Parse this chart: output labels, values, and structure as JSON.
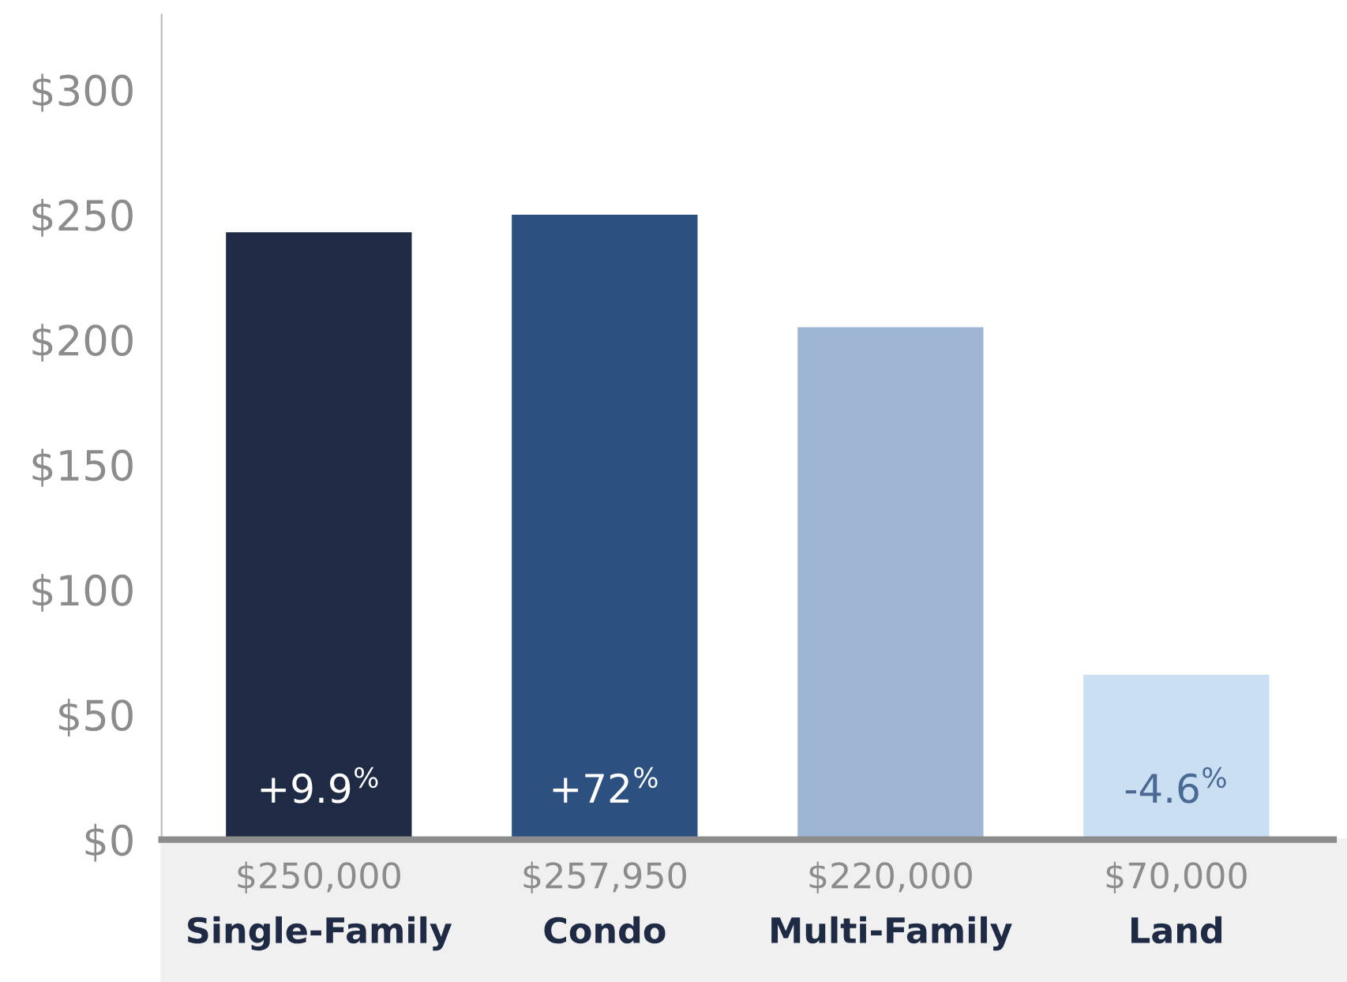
{
  "chart_data": {
    "type": "bar",
    "categories": [
      "$250,000\nSingle-Family",
      "$257,950\nCondo",
      "$220,000\nMulti-Family",
      "$70,000\nLand"
    ],
    "values": [
      243,
      250,
      205,
      66
    ],
    "colors": [
      "#1f2b45",
      "#2c5080",
      "#9fb5d4",
      "#cadff2"
    ],
    "ylim": [
      0,
      330
    ],
    "yticks": [
      {
        "value": 0,
        "label": "$0"
      },
      {
        "value": 50,
        "label": "$50"
      },
      {
        "value": 100,
        "label": "$100"
      },
      {
        "value": 150,
        "label": "$150"
      },
      {
        "value": 200,
        "label": "$200"
      },
      {
        "value": 250,
        "label": "$250"
      },
      {
        "value": 300,
        "label": "$300"
      }
    ],
    "annotations": [
      "+9.9$^{%}$",
      "+72$^{%}$",
      "-4.6$^{%}$"
    ],
    "grid": false,
    "legend": false
  }
}
